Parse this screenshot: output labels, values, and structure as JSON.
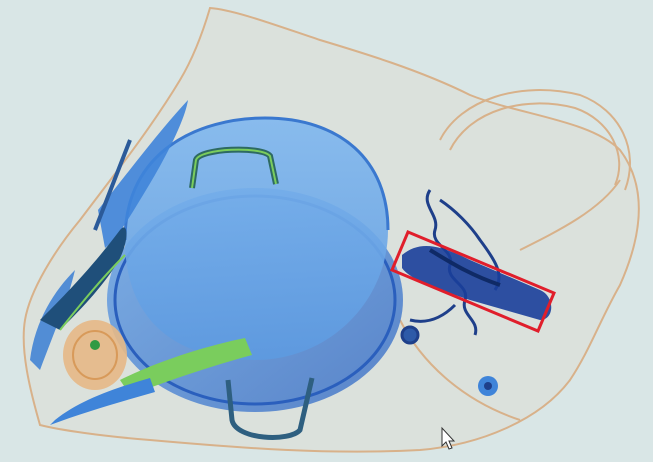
{
  "scan": {
    "background_color": "#d9e6e6",
    "bag_color": "#d7a77c",
    "organic_color": "#e6b886",
    "metal_color": "#2f6fd2",
    "dense_color": "#1d3d8e",
    "inorganic_color": "#7acd5d",
    "objects": [
      "bag-outline-icon",
      "pot-icon",
      "pot-lid-icon",
      "knife-icon",
      "scissors-icon",
      "tape-roll-icon",
      "chain-icon",
      "bottle-icon",
      "coin-icon",
      "pointer-cursor-icon"
    ]
  },
  "detection": {
    "box_color": "#e01e2b",
    "target": "knife-icon"
  }
}
